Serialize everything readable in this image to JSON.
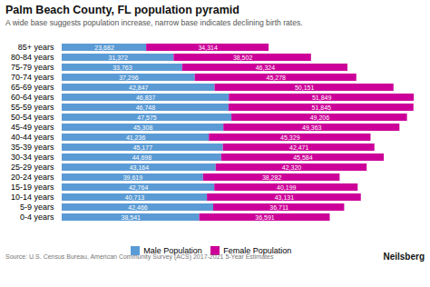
{
  "chart_data": {
    "type": "bar",
    "orientation": "horizontal",
    "stacked": true,
    "title": "Palm Beach County, FL population pyramid",
    "subtitle": "A wide base suggests population increase, narrow base indicates declining birth rates.",
    "source": "Source: U.S. Census Bureau, American Community Survey (ACS) 2017-2021 5-Year Estimates",
    "watermark": "Neilsberg",
    "categories": [
      "85+ years",
      "80-84 years",
      "75-79 years",
      "70-74 years",
      "65-69 years",
      "60-64 years",
      "55-59 years",
      "50-54 years",
      "45-49 years",
      "40-44 years",
      "35-39 years",
      "30-34 years",
      "25-29 years",
      "20-24 years",
      "15-19 years",
      "10-14 years",
      "5-9 years",
      "0-4 years"
    ],
    "series": [
      {
        "name": "Male Population",
        "color": "#5b9bd5",
        "values": [
          23682,
          31372,
          33763,
          37296,
          42847,
          46837,
          46748,
          47575,
          45308,
          41236,
          45177,
          44698,
          43164,
          39619,
          42764,
          40713,
          42466,
          38541
        ],
        "value_labels": [
          "23,682",
          "31,372",
          "33,763",
          "37,296",
          "42,847",
          "46,837",
          "46,748",
          "47,575",
          "45,308",
          "41,236",
          "45,177",
          "44,698",
          "43,164",
          "39,619",
          "42,764",
          "40,713",
          "42,466",
          "38,541"
        ]
      },
      {
        "name": "Female Population",
        "color": "#cc0099",
        "values": [
          34314,
          38502,
          46324,
          45278,
          50151,
          51849,
          51845,
          49206,
          49363,
          45329,
          42471,
          45584,
          42320,
          38282,
          40199,
          43131,
          36711,
          36591
        ],
        "value_labels": [
          "34,314",
          "38,502",
          "46,324",
          "45,278",
          "50,151",
          "51,849",
          "51,845",
          "49,206",
          "49,363",
          "45,329",
          "42,471",
          "45,584",
          "42,320",
          "38,282",
          "40,199",
          "43,131",
          "36,711",
          "36,591"
        ]
      }
    ],
    "xlim": [
      0,
      99672.86
    ],
    "xticks": [],
    "data_labels": true,
    "tick_labels": "y",
    "grid": false,
    "legend": "bottom"
  }
}
